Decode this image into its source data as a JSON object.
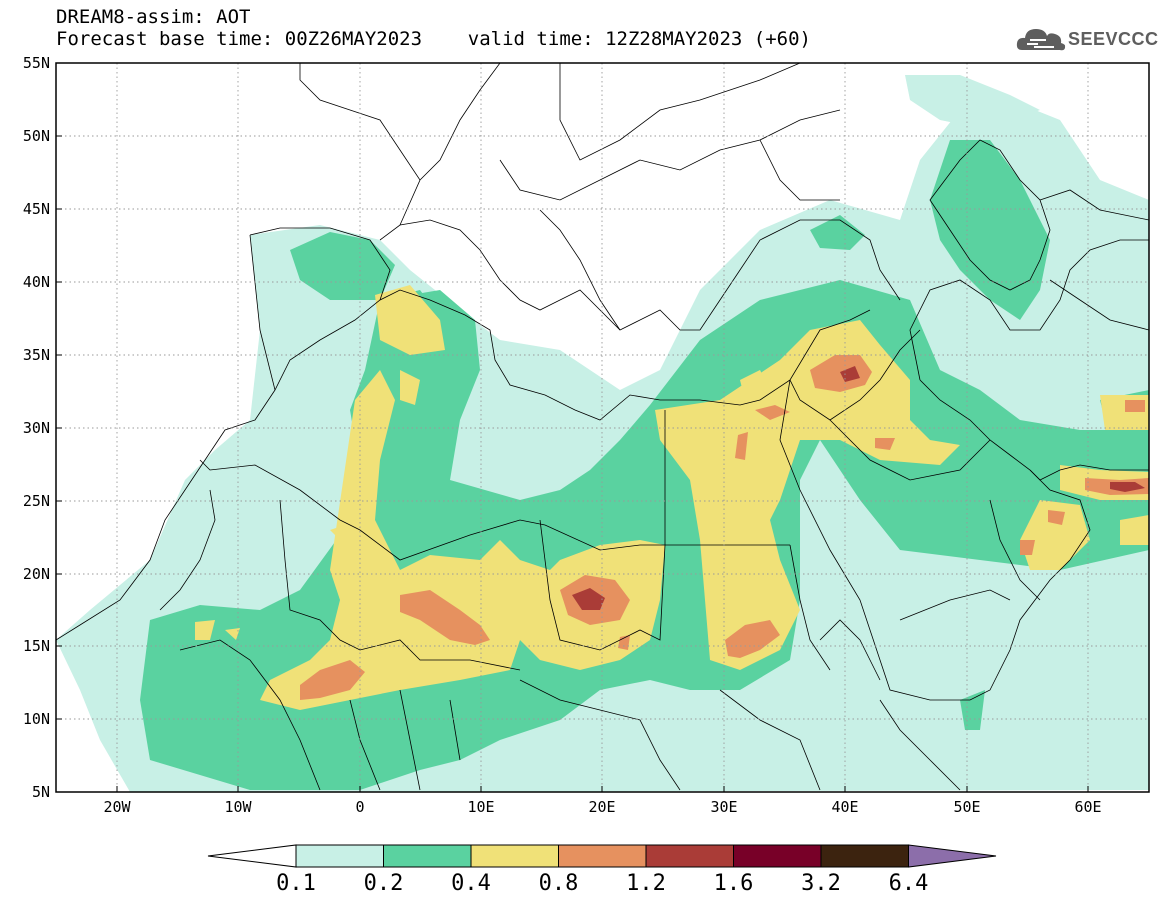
{
  "header": {
    "line1": "DREAM8-assim: AOT",
    "line2": "Forecast base time: 00Z26MAY2023    valid time: 12Z28MAY2023 (+60)"
  },
  "logo": {
    "text": "SEEVCCC",
    "icon": "cloud-logo-icon"
  },
  "map": {
    "lon_range": [
      -25,
      65
    ],
    "lat_range": [
      5,
      55
    ],
    "lat_ticks": [
      "55N",
      "50N",
      "45N",
      "40N",
      "35N",
      "30N",
      "25N",
      "20N",
      "15N",
      "10N",
      "5N"
    ],
    "lon_ticks": [
      "20W",
      "10W",
      "0",
      "10E",
      "20E",
      "30E",
      "40E",
      "50E",
      "60E"
    ],
    "gridlines": true
  },
  "colors": {
    "c01": "#c8f0e6",
    "c02": "#5ad2a0",
    "c04": "#f0e178",
    "c08": "#e6915f",
    "c12": "#aa3c37",
    "c16": "#780028",
    "c32": "#3c230f",
    "c64": "#8c6eaa"
  },
  "legend": {
    "labels": [
      "0.1",
      "0.2",
      "0.4",
      "0.8",
      "1.2",
      "1.6",
      "3.2",
      "6.4"
    ]
  }
}
